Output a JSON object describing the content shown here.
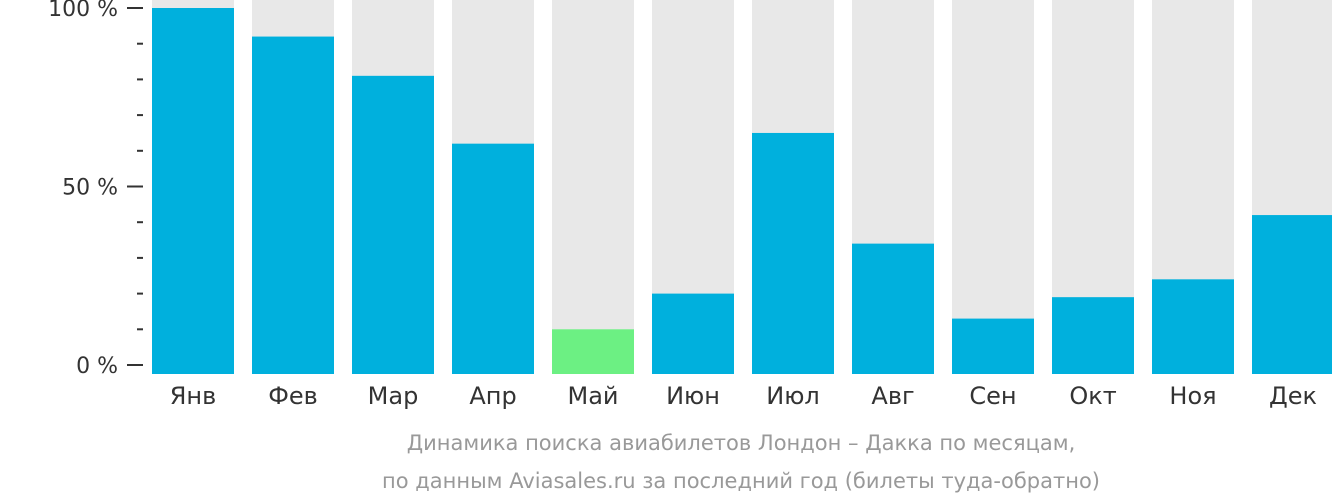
{
  "chart_data": {
    "type": "bar",
    "categories": [
      "Янв",
      "Фев",
      "Мар",
      "Апр",
      "Май",
      "Июн",
      "Июл",
      "Авг",
      "Сен",
      "Окт",
      "Ноя",
      "Дек"
    ],
    "values": [
      100,
      92,
      81,
      62,
      10,
      20,
      65,
      34,
      13,
      19,
      24,
      42
    ],
    "highlight_index": 4,
    "ylim": [
      0,
      100
    ],
    "yticks": [
      {
        "value": 0,
        "label": "0 %"
      },
      {
        "value": 50,
        "label": "50 %"
      },
      {
        "value": 100,
        "label": "100 %"
      }
    ],
    "minor_tick_step": 10,
    "title": "",
    "xlabel": "",
    "ylabel": "",
    "caption_lines": [
      "Динамика поиска авиабилетов Лондон – Дакка по месяцам,",
      "по данным Aviasales.ru за последний год (билеты туда-обратно)"
    ],
    "colors": {
      "bar": "#00b0dd",
      "highlight": "#6cf083",
      "background_bar": "#e8e8e8",
      "axis": "#333333",
      "caption": "#999999"
    }
  }
}
